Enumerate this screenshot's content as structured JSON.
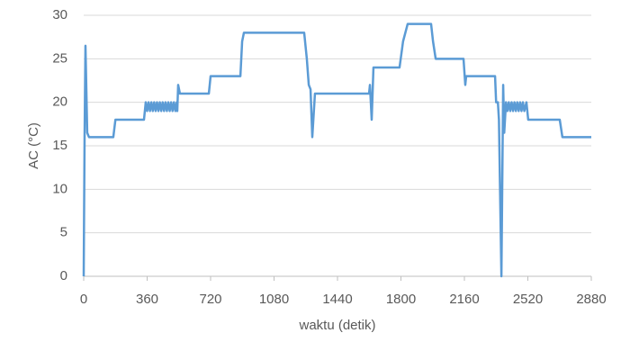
{
  "chart_data": {
    "type": "line",
    "xlabel": "waktu (detik)",
    "ylabel": "AC (°C)",
    "x": [
      0,
      5,
      10,
      20,
      30,
      168,
      180,
      342,
      352,
      360,
      368,
      376,
      384,
      392,
      400,
      408,
      416,
      424,
      432,
      440,
      448,
      456,
      464,
      472,
      480,
      488,
      496,
      504,
      512,
      520,
      528,
      531,
      536,
      546,
      710,
      720,
      889,
      899,
      909,
      1251,
      1266,
      1277,
      1287,
      1297,
      1312,
      1619,
      1624,
      1634,
      1644,
      1792,
      1812,
      1838,
      1971,
      1982,
      1997,
      2155,
      2165,
      2170,
      2334,
      2340,
      2350,
      2356,
      2370,
      2380,
      2386,
      2396,
      2404,
      2412,
      2420,
      2428,
      2436,
      2444,
      2452,
      2460,
      2468,
      2476,
      2484,
      2492,
      2500,
      2512,
      2522,
      2701,
      2716,
      2880
    ],
    "series": [
      {
        "color": "#5b9bd5",
        "values": [
          0,
          16,
          26.5,
          16.5,
          16,
          16,
          18,
          18,
          20,
          19,
          20,
          19,
          20,
          19,
          20,
          19,
          20,
          19,
          20,
          19,
          20,
          19,
          20,
          19,
          20,
          19,
          20,
          19,
          20,
          19,
          20,
          19,
          22,
          21,
          21,
          23,
          23,
          27,
          28,
          28,
          25,
          22,
          21.5,
          16,
          21,
          21,
          22,
          18,
          24,
          24,
          27,
          29,
          29,
          27,
          25,
          25,
          22,
          23,
          23,
          20,
          20,
          18,
          0,
          22,
          16.5,
          20,
          19,
          20,
          19,
          20,
          19,
          20,
          19,
          20,
          19,
          20,
          19,
          20,
          19,
          20,
          18,
          18,
          16,
          16
        ]
      }
    ],
    "xlim": [
      0,
      2880
    ],
    "xticks": [
      0,
      360,
      720,
      1080,
      1440,
      1800,
      2160,
      2520,
      2880
    ],
    "ylim": [
      0,
      30
    ],
    "yticks": [
      0,
      5,
      10,
      15,
      20,
      25,
      30
    ],
    "grid": true
  }
}
